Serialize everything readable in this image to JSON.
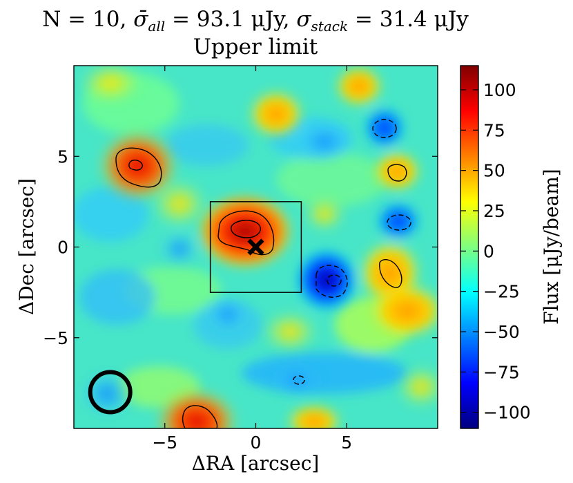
{
  "chart_data": {
    "type": "heatmap",
    "title": "N = 10, σ̄_all = 93.1 μJy, σ_stack = 31.4 μJy",
    "title_parts": {
      "n": "N = 10, ",
      "sym_all": "σ̄",
      "sub_all": "all",
      "val_all": " = 93.1 μJy, ",
      "sym_stack": "σ",
      "sub_stack": "stack",
      "val_stack": " = 31.4 μJy"
    },
    "subtitle": "Upper limit",
    "xlabel": "ΔRA [arcsec]",
    "ylabel": "ΔDec [arcsec]",
    "xlim": [
      -10,
      10
    ],
    "ylim": [
      -10,
      10
    ],
    "x_ticks": [
      -5,
      0,
      5
    ],
    "y_ticks": [
      5,
      0,
      -5
    ],
    "x_tick_labels": [
      "−5",
      "0",
      "5"
    ],
    "y_tick_labels": [
      "5",
      "0",
      "−5"
    ],
    "colorbar": {
      "label": "Flux [μJy/beam]",
      "range": [
        -110,
        115
      ],
      "ticks": [
        100,
        75,
        50,
        25,
        0,
        -25,
        -50,
        -75,
        -100
      ],
      "tick_labels": [
        "100",
        "75",
        "50",
        "25",
        "0",
        "−25",
        "−50",
        "−75",
        "−100"
      ],
      "colormap": "jet"
    },
    "features": [
      {
        "kind": "peak",
        "x": -0.5,
        "y": 0.7,
        "flux": 110
      },
      {
        "kind": "peak",
        "x": -6.5,
        "y": 4.4,
        "flux": 95
      },
      {
        "kind": "peak",
        "x": 7.3,
        "y": -1.5,
        "flux": 70
      },
      {
        "kind": "peak",
        "x": 7.5,
        "y": 4.1,
        "flux": 70
      },
      {
        "kind": "peak",
        "x": -3.0,
        "y": -9.3,
        "flux": 90
      },
      {
        "kind": "trough",
        "x": 4.3,
        "y": -1.9,
        "flux": -100
      },
      {
        "kind": "trough",
        "x": 7.1,
        "y": 6.5,
        "flux": -85
      },
      {
        "kind": "trough",
        "x": 7.8,
        "y": 1.3,
        "flux": -60
      }
    ],
    "stack_box": {
      "x": [
        -2.5,
        2.5
      ],
      "y": [
        -2.5,
        2.5
      ]
    },
    "marker": {
      "symbol": "x",
      "x": 0,
      "y": 0
    },
    "beam": {
      "x": -8.0,
      "y": -8.0,
      "diameter": 2.2
    }
  }
}
